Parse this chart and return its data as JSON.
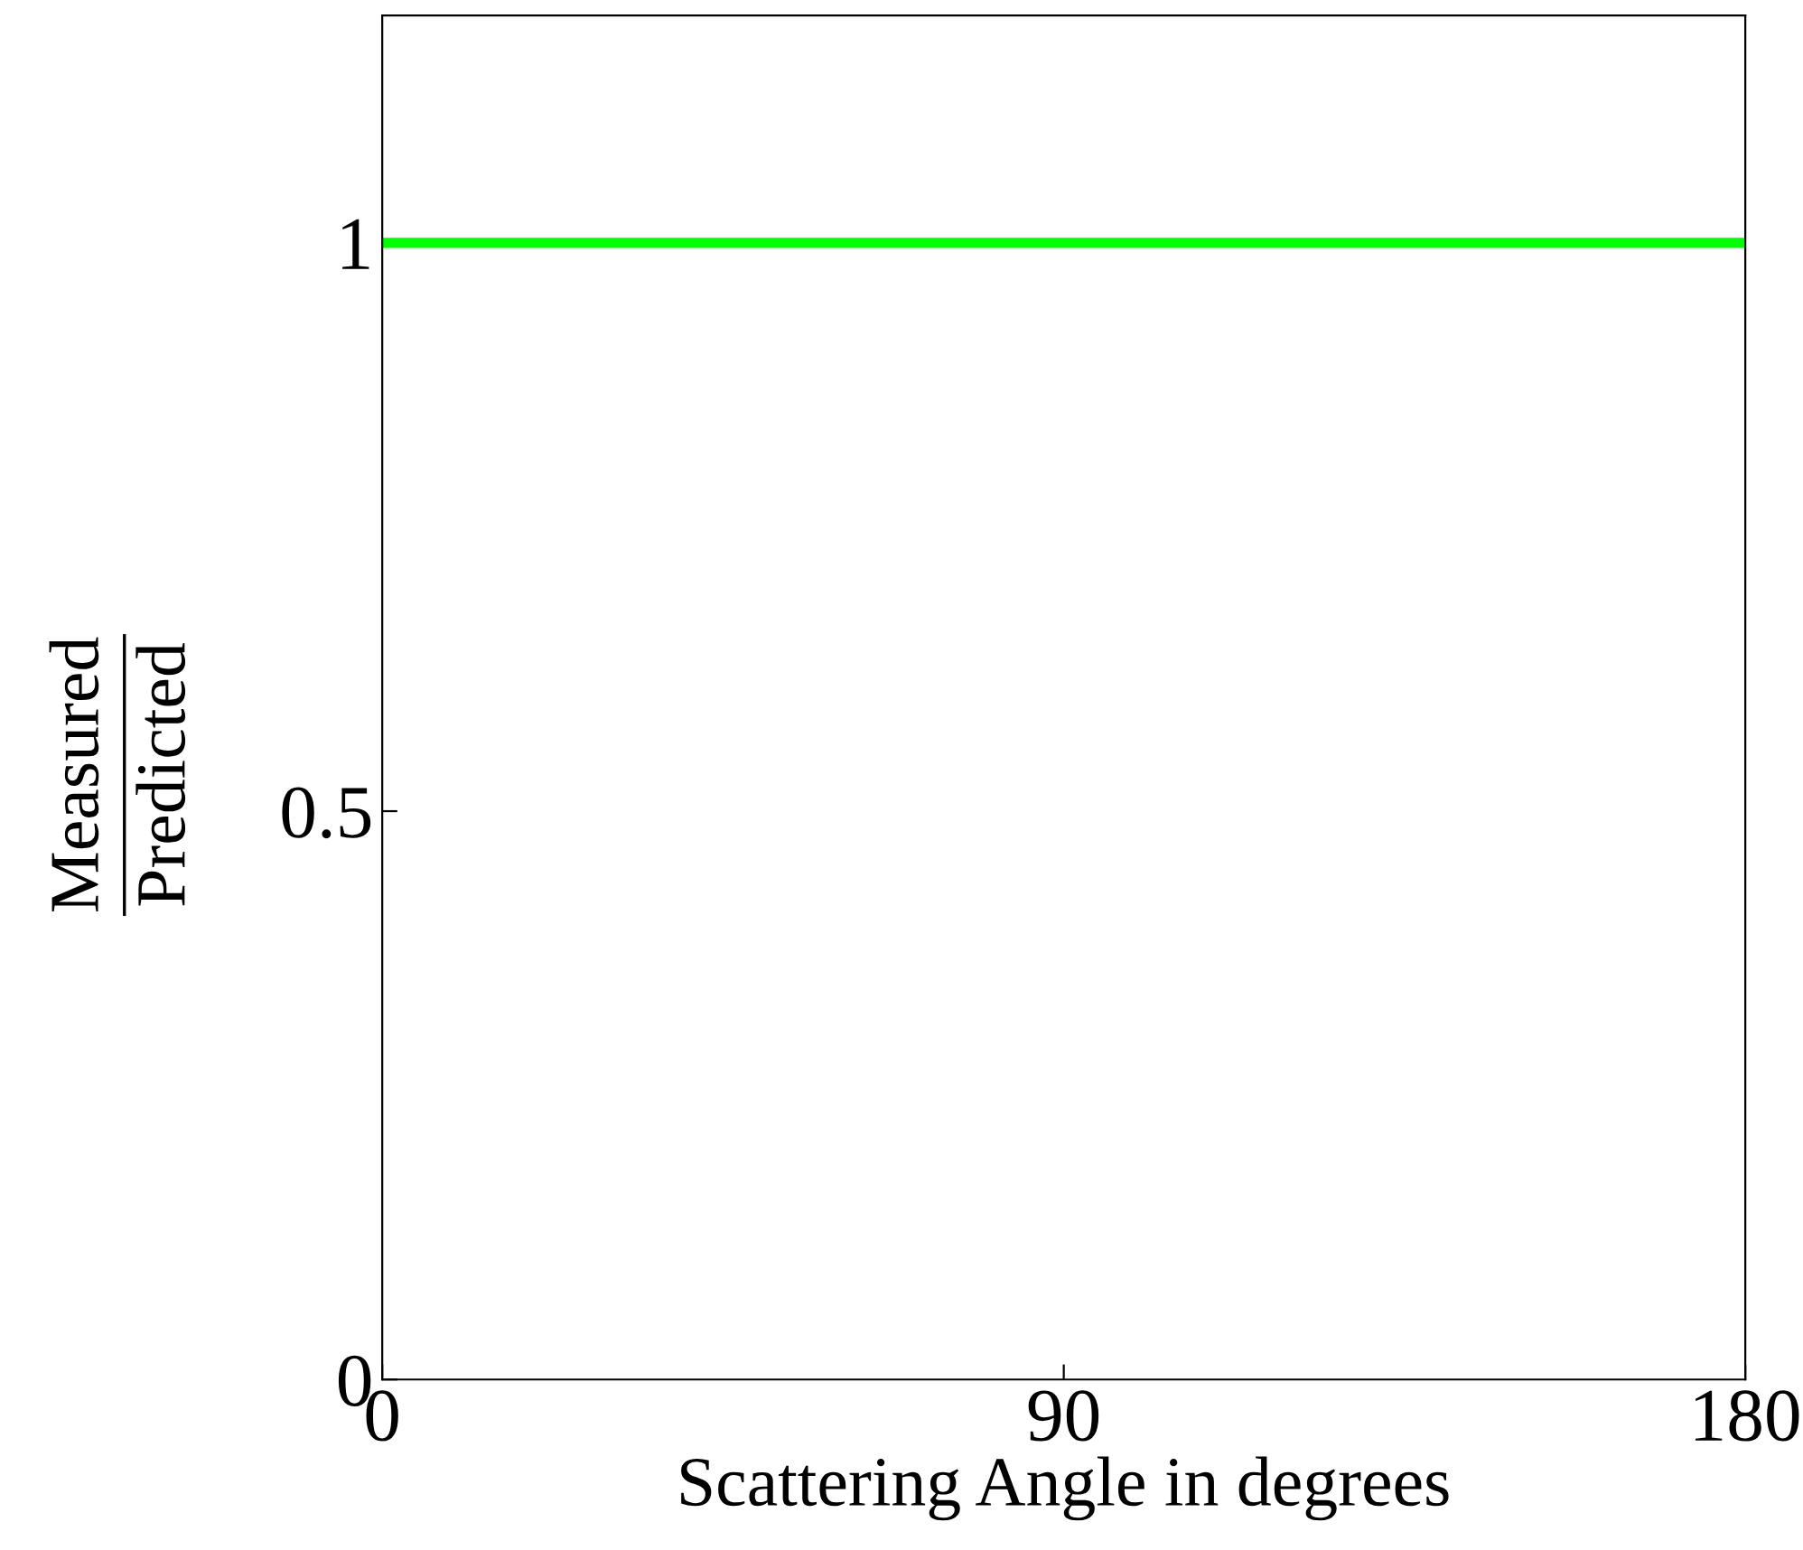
{
  "chart_data": {
    "type": "line",
    "xlabel": "Scattering Angle in degrees",
    "ylabel": "Measured\nPredicted",
    "x": [
      0,
      180
    ],
    "series": [
      {
        "color": "#00ff00",
        "values": [
          1,
          1
        ]
      }
    ],
    "xlim": [
      0,
      180
    ],
    "ylim": [
      0,
      1.2
    ],
    "xticks": [
      0,
      90,
      180
    ],
    "yticks": [
      0,
      0.5,
      1
    ],
    "grid": false,
    "marker": "none",
    "line_style": "solid"
  }
}
